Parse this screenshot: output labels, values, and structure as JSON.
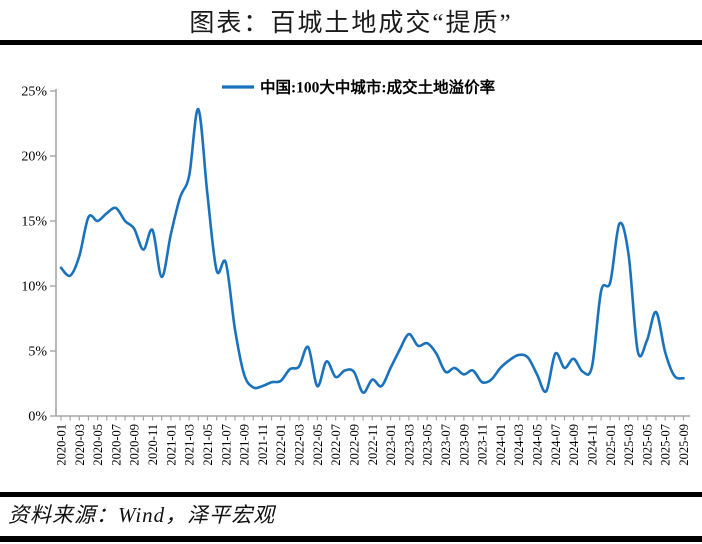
{
  "title": "图表：百城土地成交“提质”",
  "source": "资料来源：Wind，泽平宏观",
  "colors": {
    "line": "#1b72bc",
    "axis": "#a6a6a6",
    "text": "#000000",
    "divider": "#000000"
  },
  "chart_data": {
    "type": "line",
    "legend": "中国:100大中城市:成交土地溢价率",
    "x": [
      "2020-01",
      "2020-02",
      "2020-03",
      "2020-04",
      "2020-05",
      "2020-06",
      "2020-07",
      "2020-08",
      "2020-09",
      "2020-10",
      "2020-11",
      "2020-12",
      "2021-01",
      "2021-02",
      "2021-03",
      "2021-04",
      "2021-05",
      "2021-06",
      "2021-07",
      "2021-08",
      "2021-09",
      "2021-10",
      "2021-11",
      "2021-12",
      "2022-01",
      "2022-02",
      "2022-03",
      "2022-04",
      "2022-05",
      "2022-06",
      "2022-07",
      "2022-08",
      "2022-09",
      "2022-10",
      "2022-11",
      "2022-12",
      "2023-01",
      "2023-02",
      "2023-03",
      "2023-04",
      "2023-05",
      "2023-06",
      "2023-07",
      "2023-08",
      "2023-09",
      "2023-10",
      "2023-11",
      "2023-12",
      "2024-01",
      "2024-02",
      "2024-03",
      "2024-04",
      "2024-05",
      "2024-06",
      "2024-07",
      "2024-08",
      "2024-09",
      "2024-10",
      "2024-11",
      "2024-12",
      "2025-01",
      "2025-02",
      "2025-03",
      "2025-04",
      "2025-05",
      "2025-06",
      "2025-07",
      "2025-08",
      "2025-09"
    ],
    "values": [
      11.4,
      10.8,
      12.3,
      15.3,
      15.0,
      15.6,
      16.0,
      15.0,
      14.4,
      12.8,
      14.3,
      10.7,
      14.0,
      16.8,
      18.5,
      23.6,
      17.0,
      11.2,
      11.8,
      6.7,
      3.2,
      2.2,
      2.3,
      2.6,
      2.7,
      3.6,
      3.8,
      5.3,
      2.3,
      4.2,
      3.0,
      3.5,
      3.4,
      1.8,
      2.8,
      2.3,
      3.7,
      5.1,
      6.3,
      5.4,
      5.6,
      4.8,
      3.4,
      3.7,
      3.2,
      3.5,
      2.6,
      2.8,
      3.7,
      4.3,
      4.7,
      4.5,
      3.2,
      1.9,
      4.8,
      3.7,
      4.4,
      3.4,
      3.8,
      9.6,
      10.3,
      14.8,
      12.4,
      5.0,
      5.8,
      8.0,
      4.9,
      3.1,
      2.9
    ],
    "y_tick_labels": [
      "0%",
      "5%",
      "10%",
      "15%",
      "20%",
      "25%"
    ],
    "ylim": [
      0,
      25
    ],
    "x_tick_every": 2,
    "grid": false,
    "legend_position": "top-center",
    "smooth": true
  }
}
